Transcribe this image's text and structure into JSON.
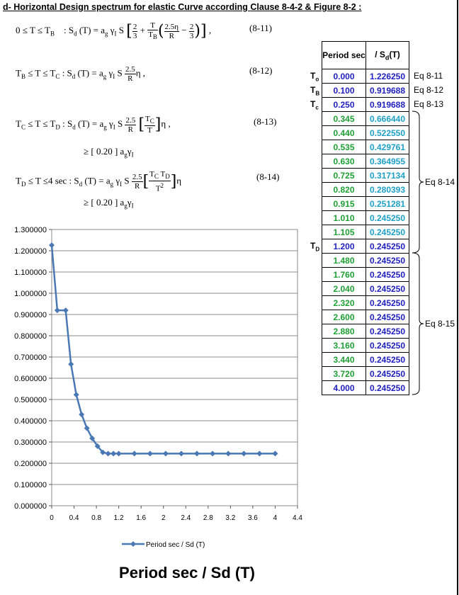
{
  "heading": {
    "prefix": "d- Horizontal Design spectrum for elastic Curve according ",
    "link": "Clause 8-4-2 & Figure 8-2 :"
  },
  "equations": [
    {
      "range": "0 ≤  T  ≤ T",
      "range_sub": "B",
      "number": "(8-11)"
    },
    {
      "range": "T",
      "range_sub": "B",
      "range2": " ≤  T  ≤ T",
      "range2_sub": "C",
      "number": "(8-12)"
    },
    {
      "range": "T",
      "range_sub": "C",
      "range2": " ≤  T  ≤ T",
      "range2_sub": "D",
      "number": "(8-13)"
    },
    {
      "range": "T",
      "range_sub": "D",
      "range2": " ≤  T  ≤4 sec",
      "number": "(8-14)"
    }
  ],
  "lower_bound": "≥  [ 0.20 ]  a",
  "table": {
    "header_period": "Period sec",
    "header_sd": "/  S",
    "header_sd_sub": "d",
    "header_sd_tail": "(T)",
    "rows": [
      {
        "period": "0.000",
        "sd": "1.226250",
        "pcolor": "blue",
        "scolor": "blue",
        "tlabel": "T",
        "tsub": "o",
        "eq": "Eq 8-11"
      },
      {
        "period": "0.100",
        "sd": "0.919688",
        "pcolor": "blue",
        "scolor": "blue",
        "tlabel": "T",
        "tsub": "B",
        "eq": "Eq 8-12"
      },
      {
        "period": "0.250",
        "sd": "0.919688",
        "pcolor": "blue",
        "scolor": "blue",
        "tlabel": "T",
        "tsub": "c",
        "eq": "Eq 8-13"
      },
      {
        "period": "0.345",
        "sd": "0.666440",
        "pcolor": "green",
        "scolor": "cyan"
      },
      {
        "period": "0.440",
        "sd": "0.522550",
        "pcolor": "green",
        "scolor": "cyan"
      },
      {
        "period": "0.535",
        "sd": "0.429761",
        "pcolor": "green",
        "scolor": "cyan"
      },
      {
        "period": "0.630",
        "sd": "0.364955",
        "pcolor": "green",
        "scolor": "cyan"
      },
      {
        "period": "0.725",
        "sd": "0.317134",
        "pcolor": "green",
        "scolor": "cyan"
      },
      {
        "period": "0.820",
        "sd": "0.280393",
        "pcolor": "green",
        "scolor": "cyan"
      },
      {
        "period": "0.915",
        "sd": "0.251281",
        "pcolor": "green",
        "scolor": "cyan"
      },
      {
        "period": "1.010",
        "sd": "0.245250",
        "pcolor": "green",
        "scolor": "cyan"
      },
      {
        "period": "1.105",
        "sd": "0.245250",
        "pcolor": "green",
        "scolor": "cyan"
      },
      {
        "period": "1.200",
        "sd": "0.245250",
        "pcolor": "blue",
        "scolor": "blue",
        "tlabel": "T",
        "tsub": "D"
      },
      {
        "period": "1.480",
        "sd": "0.245250",
        "pcolor": "green",
        "scolor": "blue"
      },
      {
        "period": "1.760",
        "sd": "0.245250",
        "pcolor": "green",
        "scolor": "blue"
      },
      {
        "period": "2.040",
        "sd": "0.245250",
        "pcolor": "green",
        "scolor": "blue"
      },
      {
        "period": "2.320",
        "sd": "0.245250",
        "pcolor": "green",
        "scolor": "blue"
      },
      {
        "period": "2.600",
        "sd": "0.245250",
        "pcolor": "green",
        "scolor": "blue"
      },
      {
        "period": "2.880",
        "sd": "0.245250",
        "pcolor": "green",
        "scolor": "blue"
      },
      {
        "period": "3.160",
        "sd": "0.245250",
        "pcolor": "green",
        "scolor": "blue"
      },
      {
        "period": "3.440",
        "sd": "0.245250",
        "pcolor": "green",
        "scolor": "blue"
      },
      {
        "period": "3.720",
        "sd": "0.245250",
        "pcolor": "green",
        "scolor": "blue"
      },
      {
        "period": "4.000",
        "sd": "0.245250",
        "pcolor": "blue",
        "scolor": "blue"
      }
    ],
    "brace_labels": [
      "Eq 8-14",
      "Eq 8-15"
    ]
  },
  "colors": {
    "blue": "#1f1fbf",
    "green": "#1fa035",
    "cyan": "#1fa0c8",
    "series": "#4a78b4"
  },
  "bottom_title": "Period sec   /   Sd (T)",
  "chart_data": {
    "type": "line",
    "series": [
      {
        "name": "Period sec  /  Sd (T)",
        "x": [
          0,
          0.1,
          0.25,
          0.345,
          0.44,
          0.535,
          0.63,
          0.725,
          0.82,
          0.915,
          1.01,
          1.105,
          1.2,
          1.48,
          1.76,
          2.04,
          2.32,
          2.6,
          2.88,
          3.16,
          3.44,
          3.72,
          4.0
        ],
        "y": [
          1.22625,
          0.919688,
          0.919688,
          0.66644,
          0.52255,
          0.429761,
          0.364955,
          0.317134,
          0.280393,
          0.251281,
          0.24525,
          0.24525,
          0.24525,
          0.24525,
          0.24525,
          0.24525,
          0.24525,
          0.24525,
          0.24525,
          0.24525,
          0.24525,
          0.24525,
          0.24525
        ]
      }
    ],
    "xlim": [
      0,
      4.4
    ],
    "ylim": [
      0,
      1.3
    ],
    "x_ticks": [
      "0",
      "0.4",
      "0.8",
      "1.2",
      "1.6",
      "2",
      "2.4",
      "2.8",
      "3.2",
      "3.6",
      "4",
      "4.4"
    ],
    "y_ticks": [
      "0.000000",
      "0.100000",
      "0.200000",
      "0.300000",
      "0.400000",
      "0.500000",
      "0.600000",
      "0.700000",
      "0.800000",
      "0.900000",
      "1.000000",
      "1.100000",
      "1.200000",
      "1.300000"
    ],
    "grid": true,
    "legend": "bottom"
  }
}
